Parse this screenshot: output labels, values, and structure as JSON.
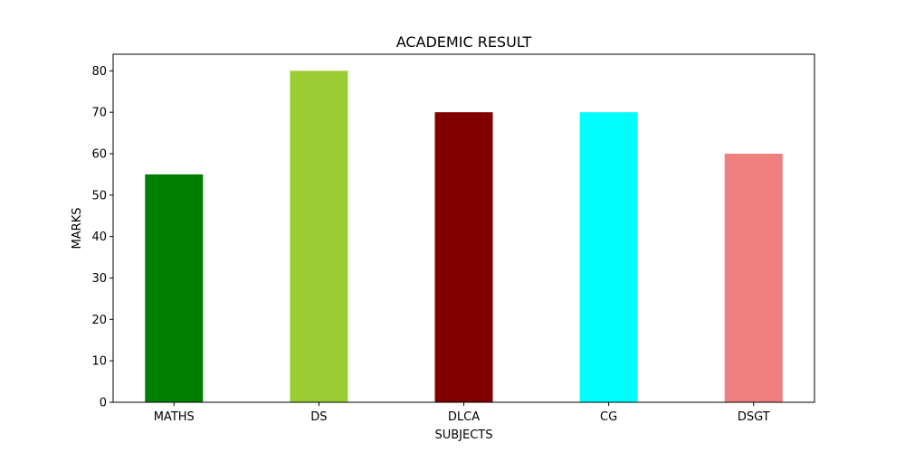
{
  "chart_data": {
    "type": "bar",
    "title": "ACADEMIC RESULT",
    "xlabel": "SUBJECTS",
    "ylabel": "MARKS",
    "categories": [
      "MATHS",
      "DS",
      "DLCA",
      "CG",
      "DSGT"
    ],
    "values": [
      55,
      80,
      70,
      70,
      60
    ],
    "colors": [
      "#008000",
      "#9acd32",
      "#800000",
      "#00ffff",
      "#f08080"
    ],
    "ylim": [
      0,
      84
    ],
    "yticks": [
      0,
      10,
      20,
      30,
      40,
      50,
      60,
      70,
      80
    ],
    "grid": false,
    "legend": "none"
  }
}
